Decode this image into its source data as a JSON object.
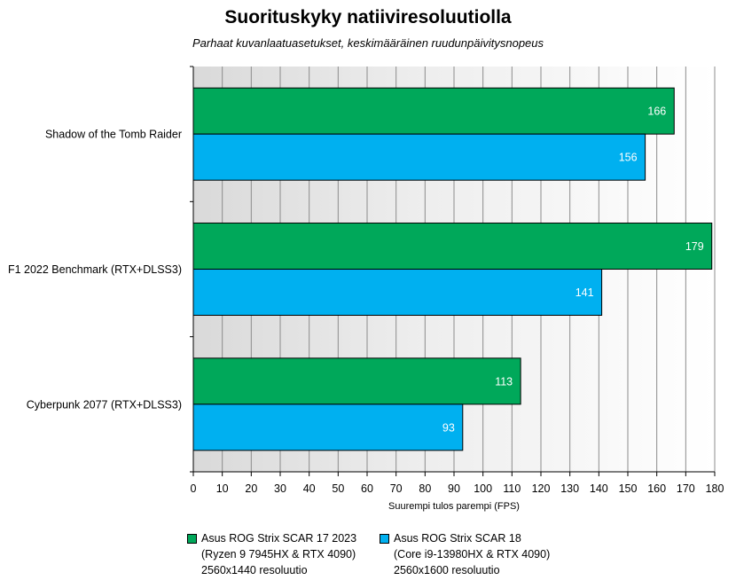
{
  "chart_data": {
    "type": "bar",
    "orientation": "horizontal",
    "title": "Suorituskyky natiiviresoluutiolla",
    "subtitle": "Parhaat kuvanlaatuasetukset, keskimääräinen ruudunpäivitysnopeus",
    "xlabel": "Suurempi tulos parempi (FPS)",
    "xlim": [
      0,
      180
    ],
    "xticks": [
      0,
      10,
      20,
      30,
      40,
      50,
      60,
      70,
      80,
      90,
      100,
      110,
      120,
      130,
      140,
      150,
      160,
      170,
      180
    ],
    "categories": [
      "Shadow of the Tomb Raider",
      "F1 2022 Benchmark (RTX+DLSS3)",
      "Cyberpunk 2077 (RTX+DLSS3)"
    ],
    "series": [
      {
        "legend_lines": [
          "Asus ROG Strix SCAR 17 2023",
          "(Ryzen 9 7945HX & RTX 4090)",
          "2560x1440 resoluutio"
        ],
        "color": "#00a85a",
        "values": [
          166,
          179,
          113
        ]
      },
      {
        "legend_lines": [
          "Asus ROG Strix SCAR 18",
          "(Core i9-13980HX & RTX 4090)",
          "2560x1600 resoluutio"
        ],
        "color": "#00b0f0",
        "values": [
          156,
          141,
          93
        ]
      }
    ],
    "data_labels": true,
    "grid": true,
    "legend_position": "bottom"
  }
}
